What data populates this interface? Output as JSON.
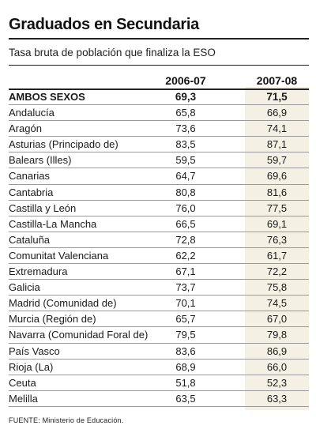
{
  "chart_data": {
    "type": "table",
    "title": "Graduados en Secundaria",
    "subtitle": "Tasa bruta de población que finaliza la ESO",
    "columns": [
      "2006-07",
      "2007-08"
    ],
    "rows": [
      {
        "label": "AMBOS SEXOS",
        "v1": "69,3",
        "v2": "71,5"
      },
      {
        "label": "Andalucía",
        "v1": "65,8",
        "v2": "66,9"
      },
      {
        "label": "Aragón",
        "v1": "73,6",
        "v2": "74,1"
      },
      {
        "label": "Asturias (Principado de)",
        "v1": "83,5",
        "v2": "87,1"
      },
      {
        "label": "Balears (Illes)",
        "v1": "59,5",
        "v2": "59,7"
      },
      {
        "label": "Canarias",
        "v1": "64,7",
        "v2": "69,6"
      },
      {
        "label": "Cantabria",
        "v1": "80,8",
        "v2": "81,6"
      },
      {
        "label": "Castilla y León",
        "v1": "76,0",
        "v2": "77,5"
      },
      {
        "label": "Castilla-La Mancha",
        "v1": "66,5",
        "v2": "69,1"
      },
      {
        "label": "Cataluña",
        "v1": "72,8",
        "v2": "76,3"
      },
      {
        "label": "Comunitat Valenciana",
        "v1": "62,2",
        "v2": "61,7"
      },
      {
        "label": "Extremadura",
        "v1": "67,1",
        "v2": "72,2"
      },
      {
        "label": "Galicia",
        "v1": "73,7",
        "v2": "75,8"
      },
      {
        "label": "Madrid (Comunidad de)",
        "v1": "70,1",
        "v2": "74,5"
      },
      {
        "label": "Murcia (Región de)",
        "v1": "65,7",
        "v2": "67,0"
      },
      {
        "label": "Navarra (Comunidad Foral de)",
        "v1": "79,5",
        "v2": "79,8"
      },
      {
        "label": "País Vasco",
        "v1": "83,6",
        "v2": "86,9"
      },
      {
        "label": "Rioja (La)",
        "v1": "68,9",
        "v2": "66,0"
      },
      {
        "label": "Ceuta",
        "v1": "51,8",
        "v2": "52,3"
      },
      {
        "label": "Melilla",
        "v1": "63,5",
        "v2": "63,3"
      }
    ],
    "source": "FUENTE: Ministerio de Educación."
  }
}
